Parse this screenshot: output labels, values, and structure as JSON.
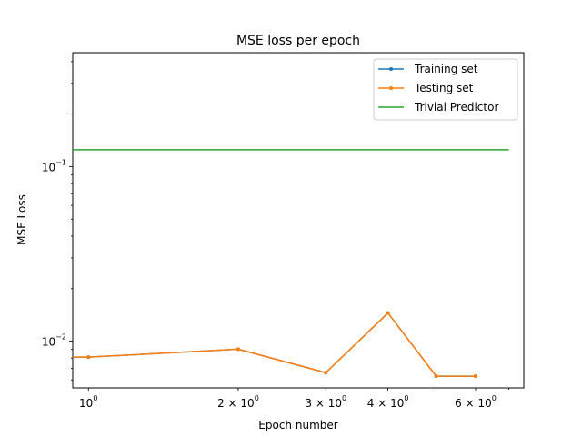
{
  "chart_data": {
    "type": "line",
    "title": "MSE loss per epoch",
    "xlabel": "Epoch number",
    "ylabel": "MSE Loss",
    "xscale": "log",
    "yscale": "log",
    "xlim": [
      0.93,
      7.5
    ],
    "ylim": [
      0.0054,
      0.45
    ],
    "grid": false,
    "legend_position": "top-right",
    "x_ticks": [
      {
        "value": 1,
        "base": "10",
        "exp": "0"
      },
      {
        "value": 2,
        "base": "2 × 10",
        "exp": "0"
      },
      {
        "value": 3,
        "base": "3 × 10",
        "exp": "0"
      },
      {
        "value": 4,
        "base": "4 × 10",
        "exp": "0"
      },
      {
        "value": 6,
        "base": "6 × 10",
        "exp": "0"
      }
    ],
    "x_minor_ticks": [
      5,
      7
    ],
    "y_ticks": [
      {
        "value": 0.1,
        "base": "10",
        "exp": "−1"
      },
      {
        "value": 0.01,
        "base": "10",
        "exp": "−2"
      }
    ],
    "y_minor_ticks": [
      0.006,
      0.007,
      0.008,
      0.009,
      0.02,
      0.03,
      0.04,
      0.05,
      0.06,
      0.07,
      0.08,
      0.09,
      0.2,
      0.3,
      0.4
    ],
    "series": [
      {
        "name": "Training set",
        "color": "#1f77b4",
        "marker": true,
        "x": [
          0.9,
          1,
          2,
          3,
          4,
          5,
          6
        ],
        "y": [
          0.0081,
          0.0081,
          0.009,
          0.0066,
          0.0145,
          0.0063,
          0.0063
        ]
      },
      {
        "name": "Testing set",
        "color": "#ff7f0e",
        "marker": true,
        "x": [
          0.9,
          1,
          2,
          3,
          4,
          5,
          6
        ],
        "y": [
          0.0081,
          0.0081,
          0.009,
          0.0066,
          0.0145,
          0.0063,
          0.0063
        ]
      },
      {
        "name": "Trivial Predictor",
        "color": "#2ca02c",
        "marker": false,
        "x": [
          0.9,
          7
        ],
        "y": [
          0.125,
          0.125
        ]
      }
    ]
  }
}
